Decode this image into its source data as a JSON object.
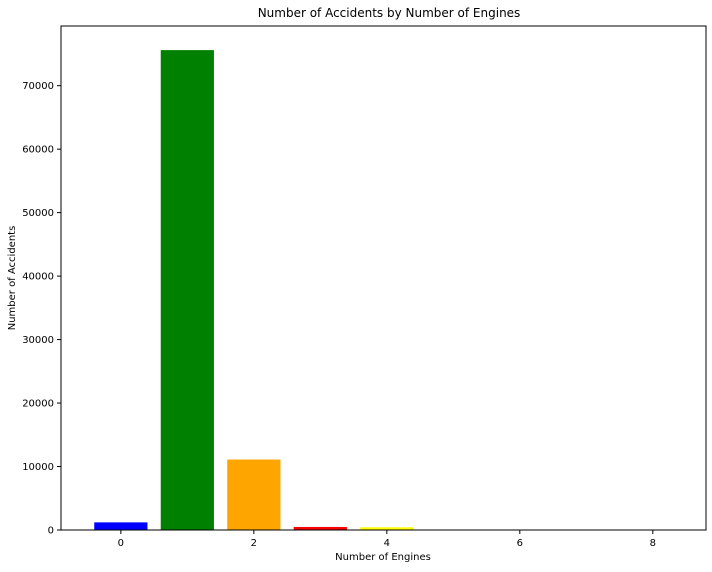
{
  "chart_data": {
    "type": "bar",
    "title": "Number of Accidents by Number of Engines",
    "xlabel": "Number of Engines",
    "ylabel": "Number of Accidents",
    "x": [
      0,
      1,
      2,
      3,
      4,
      6,
      8
    ],
    "values": [
      1200,
      75600,
      11100,
      480,
      430,
      10,
      5
    ],
    "colors": [
      "#0000ff",
      "#008000",
      "#ffa500",
      "#ff0000",
      "#ffff00",
      "#800080",
      "#ffc0cb"
    ],
    "xlim": [
      -0.9,
      8.8
    ],
    "ylim": [
      0,
      79400
    ],
    "xticks": [
      0,
      2,
      4,
      6,
      8
    ],
    "xtick_labels": [
      "0",
      "2",
      "4",
      "6",
      "8"
    ],
    "yticks": [
      0,
      10000,
      20000,
      30000,
      40000,
      50000,
      60000,
      70000
    ],
    "ytick_labels": [
      "0",
      "10000",
      "20000",
      "30000",
      "40000",
      "50000",
      "60000",
      "70000"
    ],
    "bar_width": 0.8,
    "grid": false,
    "legend": "none"
  }
}
